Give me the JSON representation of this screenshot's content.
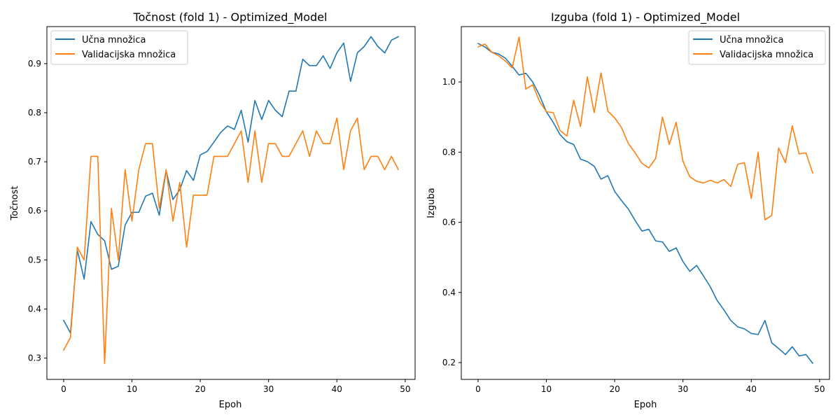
{
  "chart_data": [
    {
      "type": "line",
      "title": "Točnost (fold 1) - Optimized_Model",
      "xlabel": "Epoh",
      "ylabel": "Točnost",
      "xlim": [
        -2.45,
        51.45
      ],
      "ylim": [
        0.2565,
        0.9755
      ],
      "xticks": [
        0,
        10,
        20,
        30,
        40,
        50
      ],
      "yticks": [
        0.3,
        0.4,
        0.5,
        0.6,
        0.7,
        0.8,
        0.9
      ],
      "ytick_labels": [
        "0.3",
        "0.4",
        "0.5",
        "0.6",
        "0.7",
        "0.8",
        "0.9"
      ],
      "legend_loc": "upper-left",
      "grid": false,
      "series": [
        {
          "name": "Učna množica",
          "color": "#1f77b4",
          "values": [
            0.377,
            0.351,
            0.52,
            0.461,
            0.578,
            0.552,
            0.539,
            0.481,
            0.487,
            0.571,
            0.597,
            0.597,
            0.63,
            0.636,
            0.591,
            0.682,
            0.623,
            0.643,
            0.682,
            0.662,
            0.714,
            0.721,
            0.74,
            0.76,
            0.773,
            0.766,
            0.805,
            0.74,
            0.825,
            0.786,
            0.825,
            0.805,
            0.792,
            0.844,
            0.844,
            0.909,
            0.896,
            0.896,
            0.916,
            0.89,
            0.922,
            0.942,
            0.864,
            0.922,
            0.935,
            0.955,
            0.935,
            0.922,
            0.948,
            0.955
          ]
        },
        {
          "name": "Validacijska množica",
          "color": "#ff7f0e",
          "values": [
            0.316,
            0.342,
            0.526,
            0.5,
            0.711,
            0.711,
            0.289,
            0.605,
            0.5,
            0.684,
            0.579,
            0.684,
            0.737,
            0.737,
            0.605,
            0.684,
            0.579,
            0.658,
            0.526,
            0.632,
            0.632,
            0.632,
            0.711,
            0.711,
            0.711,
            0.737,
            0.763,
            0.658,
            0.763,
            0.658,
            0.737,
            0.737,
            0.711,
            0.711,
            0.737,
            0.763,
            0.711,
            0.763,
            0.737,
            0.737,
            0.789,
            0.684,
            0.763,
            0.789,
            0.684,
            0.711,
            0.711,
            0.684,
            0.711,
            0.684
          ]
        }
      ]
    },
    {
      "type": "line",
      "title": "Izguba (fold 1) - Optimized_Model",
      "xlabel": "Epoh",
      "ylabel": "Izguba",
      "xlim": [
        -2.45,
        51.45
      ],
      "ylim": [
        0.152,
        1.158
      ],
      "xticks": [
        0,
        10,
        20,
        30,
        40,
        50
      ],
      "yticks": [
        0.2,
        0.4,
        0.6,
        0.8,
        1.0
      ],
      "ytick_labels": [
        "0.2",
        "0.4",
        "0.6",
        "0.8",
        "1.0"
      ],
      "legend_loc": "upper-right",
      "grid": false,
      "series": [
        {
          "name": "Učna množica",
          "color": "#1f77b4",
          "values": [
            1.11,
            1.1,
            1.085,
            1.08,
            1.068,
            1.045,
            1.02,
            1.025,
            1.0,
            0.962,
            0.915,
            0.885,
            0.85,
            0.83,
            0.822,
            0.78,
            0.773,
            0.76,
            0.723,
            0.733,
            0.688,
            0.662,
            0.638,
            0.605,
            0.575,
            0.58,
            0.547,
            0.544,
            0.517,
            0.527,
            0.488,
            0.46,
            0.477,
            0.447,
            0.416,
            0.377,
            0.35,
            0.32,
            0.302,
            0.296,
            0.283,
            0.28,
            0.32,
            0.256,
            0.24,
            0.223,
            0.245,
            0.219,
            0.223,
            0.198
          ]
        },
        {
          "name": "Validacijska množica",
          "color": "#ff7f0e",
          "values": [
            1.1,
            1.108,
            1.085,
            1.075,
            1.06,
            1.04,
            1.128,
            0.98,
            0.992,
            0.945,
            0.915,
            0.913,
            0.862,
            0.846,
            0.948,
            0.873,
            1.015,
            0.913,
            1.026,
            0.917,
            0.898,
            0.87,
            0.825,
            0.798,
            0.768,
            0.755,
            0.782,
            0.9,
            0.822,
            0.885,
            0.774,
            0.73,
            0.717,
            0.712,
            0.72,
            0.712,
            0.722,
            0.702,
            0.765,
            0.77,
            0.668,
            0.8,
            0.607,
            0.62,
            0.812,
            0.77,
            0.875,
            0.795,
            0.798,
            0.74
          ]
        }
      ]
    }
  ]
}
